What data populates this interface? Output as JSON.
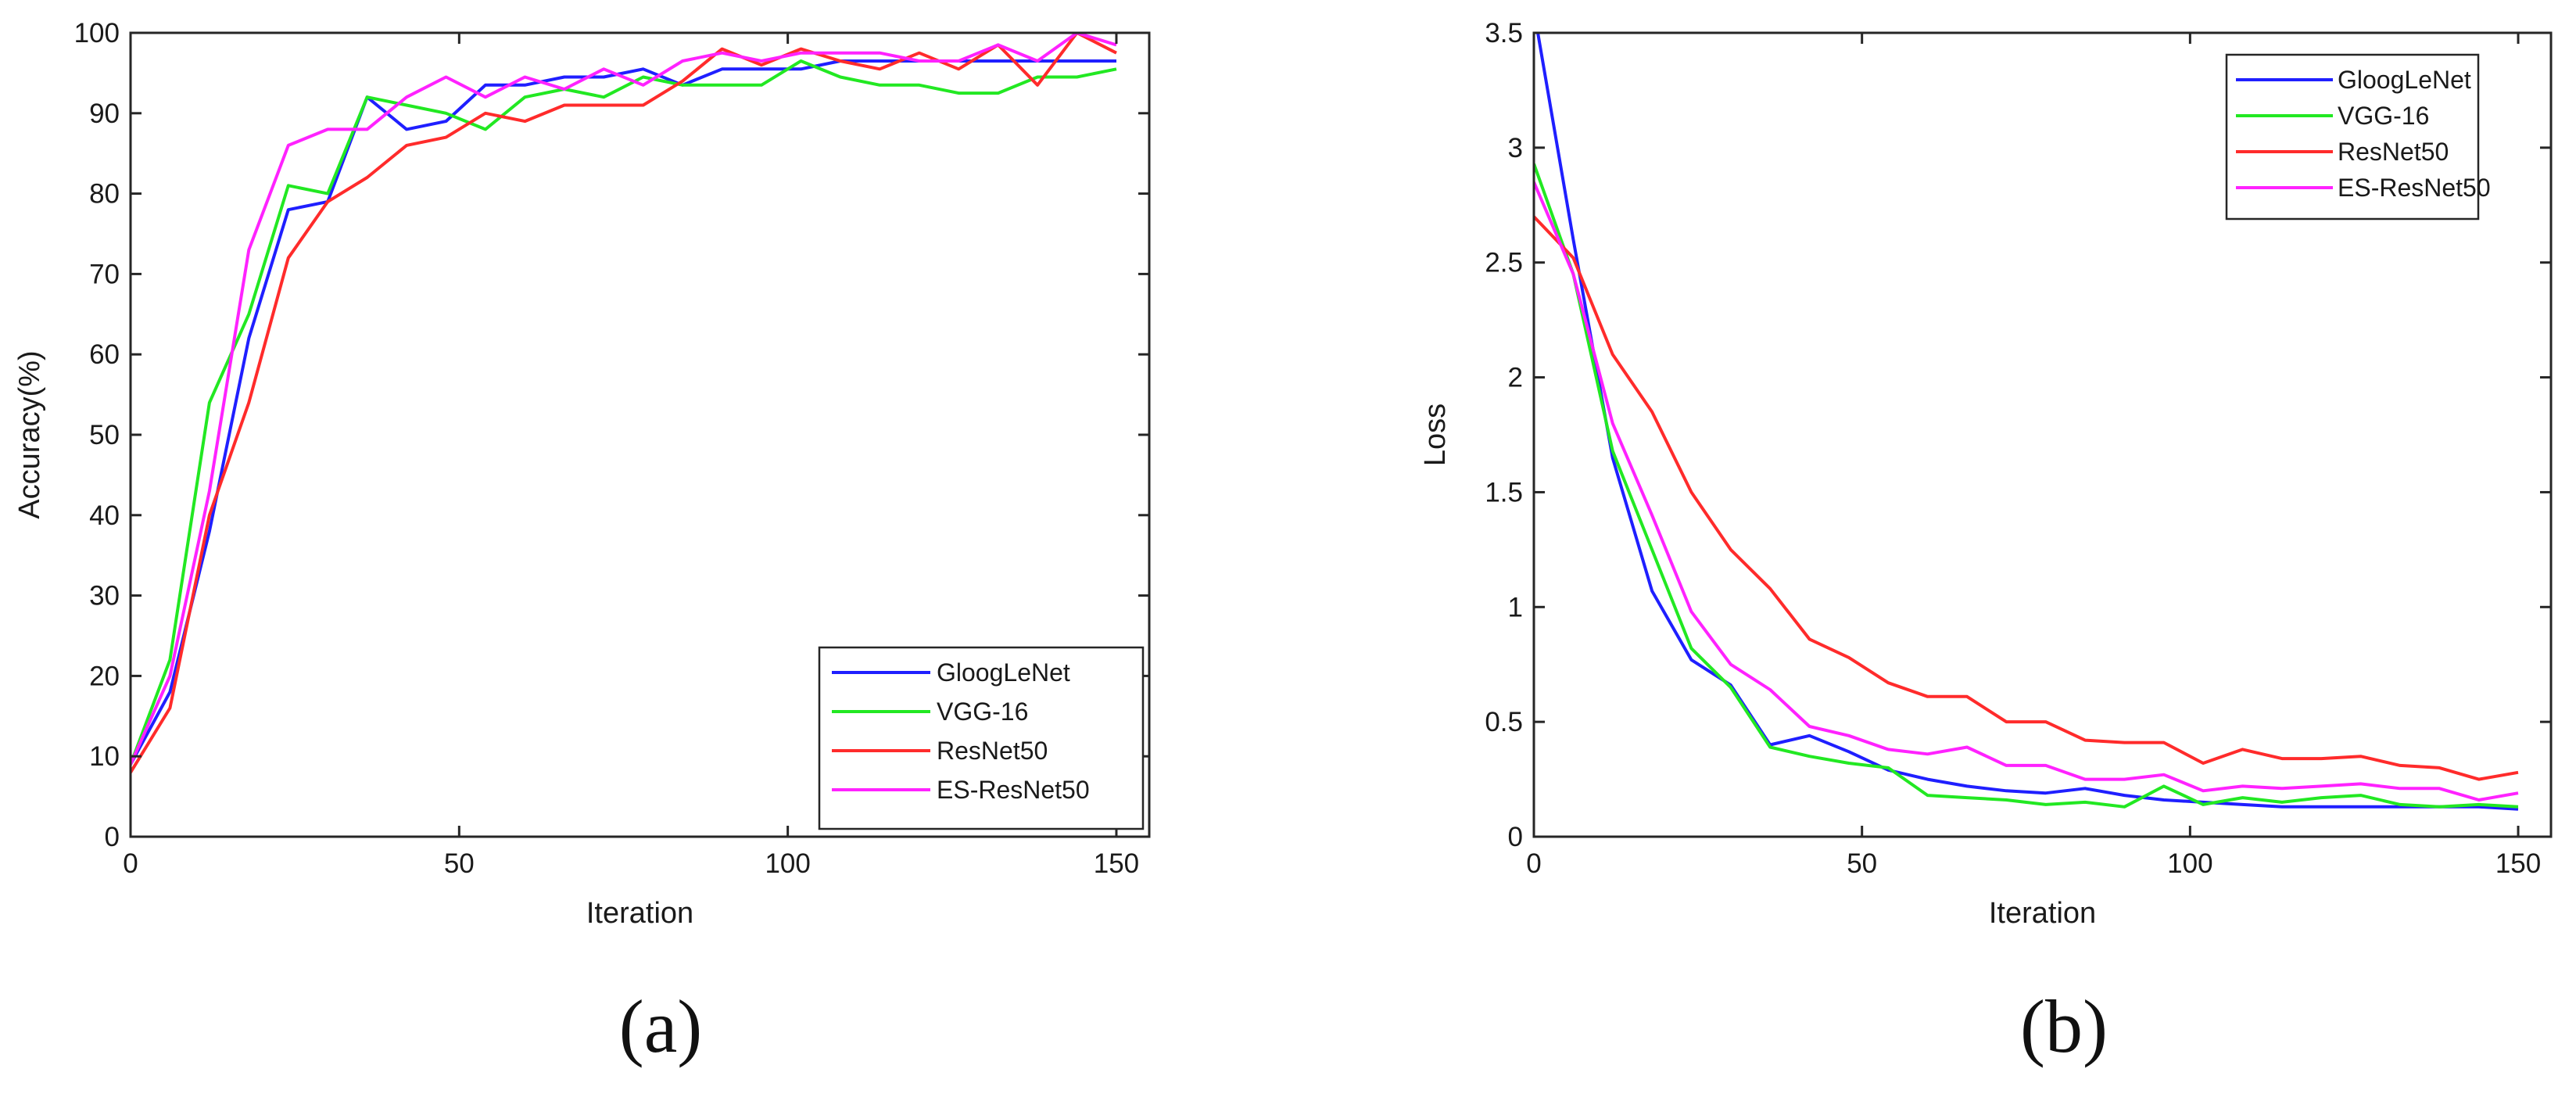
{
  "charts": [
    {
      "id": "a",
      "chart_data": {
        "type": "line",
        "title": "",
        "caption": "(a)",
        "xlabel": "Iteration",
        "ylabel": "Accuracy(%)",
        "xlim": [
          0,
          155
        ],
        "ylim": [
          0,
          100
        ],
        "xticks": [
          0,
          50,
          100,
          150
        ],
        "yticks": [
          0,
          10,
          20,
          30,
          40,
          50,
          60,
          70,
          80,
          90,
          100
        ],
        "grid": false,
        "legend_position": "bottom-right",
        "series": [
          {
            "name": "GloogLeNet",
            "color": "#1f1fff",
            "x": [
              0,
              6,
              12,
              18,
              24,
              30,
              36,
              42,
              48,
              54,
              60,
              66,
              72,
              78,
              84,
              90,
              96,
              102,
              108,
              114,
              120,
              126,
              132,
              138,
              144,
              150
            ],
            "y": [
              9,
              18,
              38,
              62,
              78,
              79,
              92,
              88,
              89,
              93.5,
              93.5,
              94.5,
              94.5,
              95.5,
              93.5,
              95.5,
              95.5,
              95.5,
              96.5,
              96.5,
              96.5,
              96.5,
              96.5,
              96.5,
              96.5,
              96.5
            ]
          },
          {
            "name": "VGG-16",
            "color": "#22e822",
            "x": [
              0,
              6,
              12,
              18,
              24,
              30,
              36,
              42,
              48,
              54,
              60,
              66,
              72,
              78,
              84,
              90,
              96,
              102,
              108,
              114,
              120,
              126,
              132,
              138,
              144,
              150
            ],
            "y": [
              9,
              22,
              54,
              65,
              81,
              80,
              92,
              91,
              90,
              88,
              92,
              93,
              92,
              94.5,
              93.5,
              93.5,
              93.5,
              96.5,
              94.5,
              93.5,
              93.5,
              92.5,
              92.5,
              94.5,
              94.5,
              95.5
            ]
          },
          {
            "name": "ResNet50",
            "color": "#ff2b2b",
            "x": [
              0,
              6,
              12,
              18,
              24,
              30,
              36,
              42,
              48,
              54,
              60,
              66,
              72,
              78,
              84,
              90,
              96,
              102,
              108,
              114,
              120,
              126,
              132,
              138,
              144,
              150
            ],
            "y": [
              8,
              16,
              40,
              54,
              72,
              79,
              82,
              86,
              87,
              90,
              89,
              91,
              91,
              91,
              94,
              98,
              96,
              98,
              96.5,
              95.5,
              97.5,
              95.5,
              98.5,
              93.5,
              100,
              97.5
            ]
          },
          {
            "name": "ES-ResNet50",
            "color": "#ff22ff",
            "x": [
              0,
              6,
              12,
              18,
              24,
              30,
              36,
              42,
              48,
              54,
              60,
              66,
              72,
              78,
              84,
              90,
              96,
              102,
              108,
              114,
              120,
              126,
              132,
              138,
              144,
              150
            ],
            "y": [
              9,
              20,
              43,
              73,
              86,
              88,
              88,
              92,
              94.5,
              92,
              94.5,
              93,
              95.5,
              93.5,
              96.5,
              97.5,
              96.5,
              97.5,
              97.5,
              97.5,
              96.5,
              96.5,
              98.5,
              96.5,
              100,
              98.5
            ]
          }
        ]
      }
    },
    {
      "id": "b",
      "chart_data": {
        "type": "line",
        "title": "",
        "caption": "(b)",
        "xlabel": "Iteration",
        "ylabel": "Loss",
        "xlim": [
          0,
          155
        ],
        "ylim": [
          0,
          3.5
        ],
        "xticks": [
          0,
          50,
          100,
          150
        ],
        "yticks": [
          0,
          0.5,
          1,
          1.5,
          2,
          2.5,
          3,
          3.5
        ],
        "grid": false,
        "legend_position": "top-right",
        "series": [
          {
            "name": "GloogLeNet",
            "color": "#1f1fff",
            "x": [
              0,
              6,
              12,
              18,
              24,
              30,
              36,
              42,
              48,
              54,
              60,
              66,
              72,
              78,
              84,
              90,
              96,
              102,
              108,
              114,
              120,
              126,
              132,
              138,
              144,
              150
            ],
            "y": [
              3.6,
              2.6,
              1.65,
              1.07,
              0.77,
              0.66,
              0.4,
              0.44,
              0.37,
              0.29,
              0.25,
              0.22,
              0.2,
              0.19,
              0.21,
              0.18,
              0.16,
              0.15,
              0.14,
              0.13,
              0.13,
              0.13,
              0.13,
              0.13,
              0.13,
              0.12
            ]
          },
          {
            "name": "VGG-16",
            "color": "#22e822",
            "x": [
              0,
              6,
              12,
              18,
              24,
              30,
              36,
              42,
              48,
              54,
              60,
              66,
              72,
              78,
              84,
              90,
              96,
              102,
              108,
              114,
              120,
              126,
              132,
              138,
              144,
              150
            ],
            "y": [
              2.93,
              2.45,
              1.68,
              1.25,
              0.82,
              0.65,
              0.39,
              0.35,
              0.32,
              0.3,
              0.18,
              0.17,
              0.16,
              0.14,
              0.15,
              0.13,
              0.22,
              0.14,
              0.17,
              0.15,
              0.17,
              0.18,
              0.14,
              0.13,
              0.14,
              0.13
            ]
          },
          {
            "name": "ResNet50",
            "color": "#ff2b2b",
            "x": [
              0,
              6,
              12,
              18,
              24,
              30,
              36,
              42,
              48,
              54,
              60,
              66,
              72,
              78,
              84,
              90,
              96,
              102,
              108,
              114,
              120,
              126,
              132,
              138,
              144,
              150
            ],
            "y": [
              2.7,
              2.52,
              2.1,
              1.85,
              1.5,
              1.25,
              1.08,
              0.86,
              0.78,
              0.67,
              0.61,
              0.61,
              0.5,
              0.5,
              0.42,
              0.41,
              0.41,
              0.32,
              0.38,
              0.34,
              0.34,
              0.35,
              0.31,
              0.3,
              0.25,
              0.28
            ]
          },
          {
            "name": "ES-ResNet50",
            "color": "#ff22ff",
            "x": [
              0,
              6,
              12,
              18,
              24,
              30,
              36,
              42,
              48,
              54,
              60,
              66,
              72,
              78,
              84,
              90,
              96,
              102,
              108,
              114,
              120,
              126,
              132,
              138,
              144,
              150
            ],
            "y": [
              2.85,
              2.45,
              1.8,
              1.4,
              0.98,
              0.75,
              0.64,
              0.48,
              0.44,
              0.38,
              0.36,
              0.39,
              0.31,
              0.31,
              0.25,
              0.25,
              0.27,
              0.2,
              0.22,
              0.21,
              0.22,
              0.23,
              0.21,
              0.21,
              0.16,
              0.19
            ]
          }
        ]
      }
    }
  ]
}
